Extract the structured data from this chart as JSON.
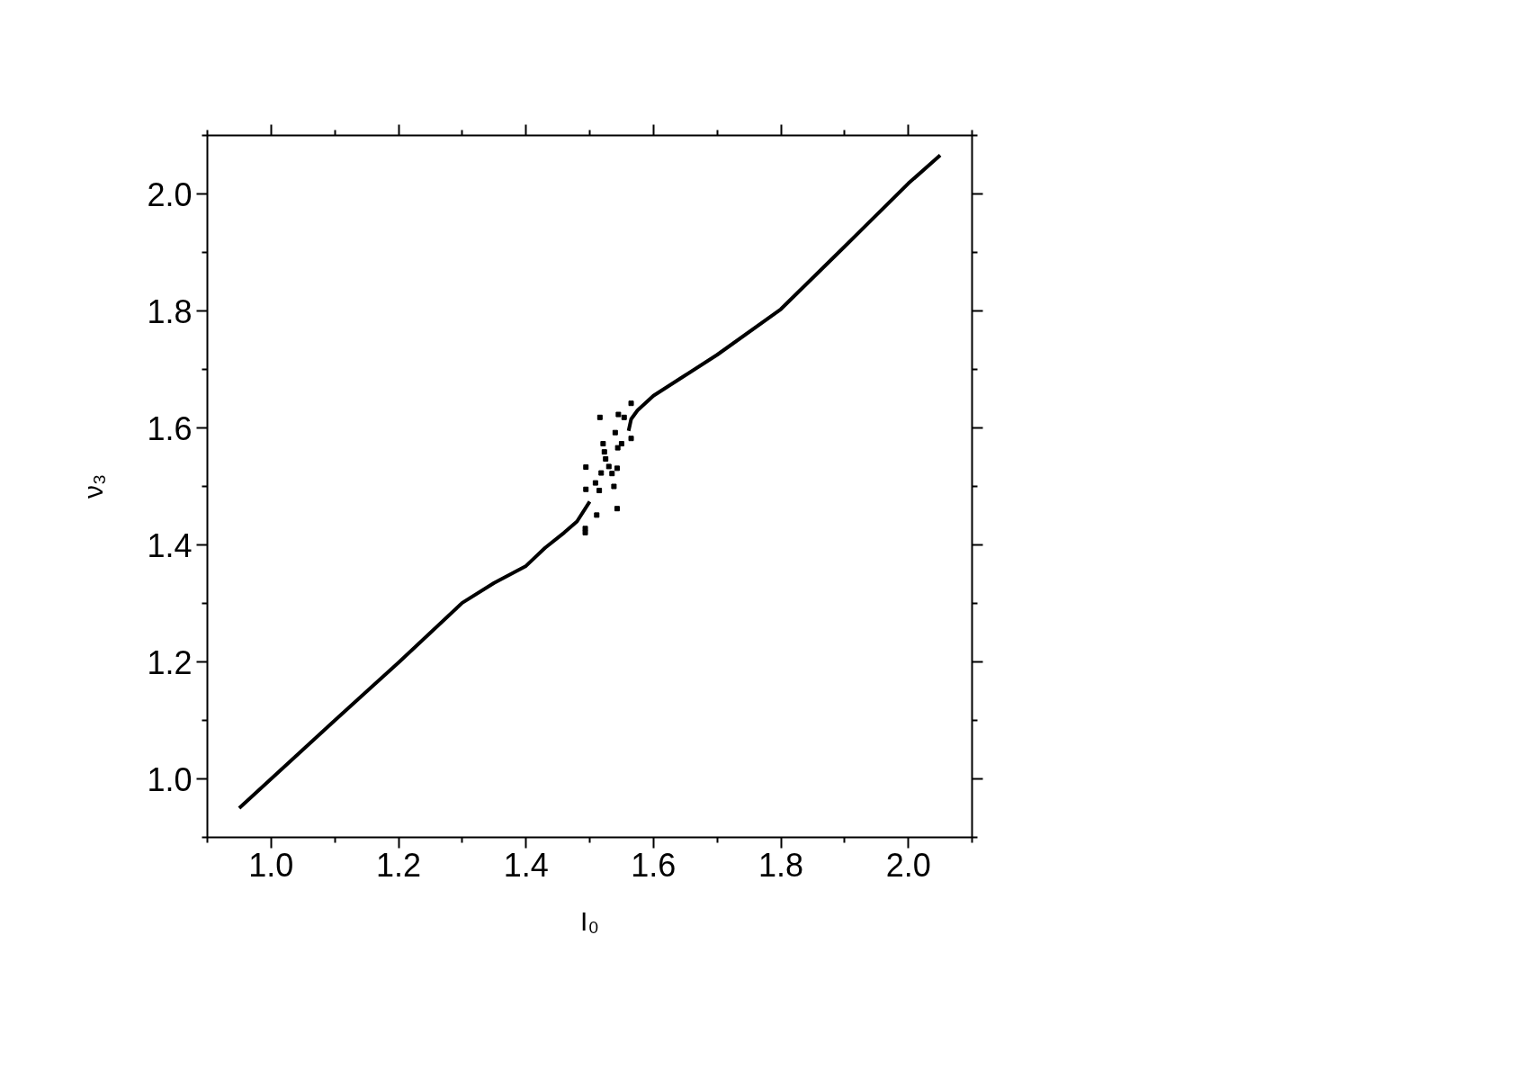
{
  "chart_data": {
    "type": "line",
    "xlabel": "I₀",
    "ylabel": "ν₃",
    "xlim": [
      0.9,
      2.1
    ],
    "ylim": [
      0.9,
      2.1
    ],
    "xticks": [
      {
        "value": 1,
        "label": "1.0"
      },
      1.2,
      1.4,
      1.6,
      1.8,
      {
        "value": 2,
        "label": "2.0"
      }
    ],
    "yticks": [
      {
        "value": 1,
        "label": "1.0"
      },
      1.2,
      1.4,
      1.6,
      1.8,
      {
        "value": 2,
        "label": "2.0"
      }
    ],
    "grid": false,
    "line_style": "solid",
    "series": [
      {
        "color": "#000000",
        "x": [
          0.95,
          1.0,
          1.1,
          1.2,
          1.3,
          1.35,
          1.4,
          1.43,
          1.46,
          1.48,
          1.5
        ],
        "values": [
          0.95,
          1.0,
          1.1,
          1.199,
          1.301,
          1.335,
          1.364,
          1.395,
          1.421,
          1.44,
          1.474
        ]
      },
      {
        "color": "#000000",
        "x": [
          1.561,
          1.565,
          1.575,
          1.6,
          1.65,
          1.7,
          1.8,
          1.9,
          2.0,
          2.05
        ],
        "values": [
          1.595,
          1.615,
          1.63,
          1.655,
          1.69,
          1.725,
          1.803,
          1.91,
          2.018,
          2.066
        ]
      },
      {
        "type": "scatter",
        "marker": "square",
        "color": "#000000",
        "x": [
          1.565,
          1.516,
          1.545,
          1.554,
          1.54,
          1.521,
          1.55,
          1.544,
          1.523,
          1.565,
          1.525,
          1.53,
          1.494,
          1.543,
          1.518,
          1.535,
          1.509,
          1.538,
          1.494,
          1.515,
          1.543,
          1.511,
          1.493,
          1.493
        ],
        "values": [
          1.642,
          1.618,
          1.623,
          1.618,
          1.592,
          1.573,
          1.573,
          1.566,
          1.559,
          1.582,
          1.547,
          1.534,
          1.533,
          1.531,
          1.523,
          1.522,
          1.506,
          1.5,
          1.495,
          1.493,
          1.462,
          1.451,
          1.428,
          1.421
        ]
      }
    ]
  }
}
